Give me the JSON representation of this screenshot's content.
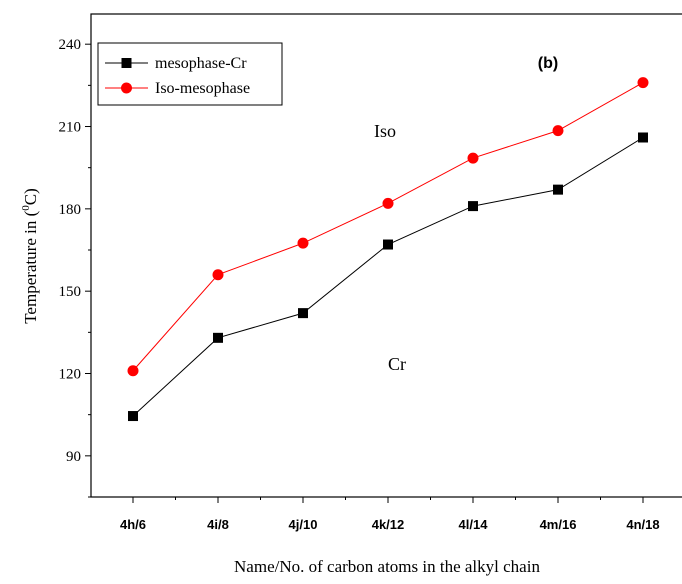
{
  "chart_data": {
    "type": "line",
    "panel_label": "(b)",
    "xlabel": "Name/No. of carbon atoms in the alkyl chain",
    "ylabel": "Temperature in (0C)",
    "ylabel_parts": {
      "before": "Temperature in (",
      "superscript": "0",
      "after": "C)"
    },
    "categories": [
      "4h/6",
      "4i/8",
      "4j/10",
      "4k/12",
      "4l/14",
      "4m/16",
      "4n/18"
    ],
    "ylim": [
      75,
      251
    ],
    "yticks": [
      90,
      120,
      150,
      180,
      210,
      240
    ],
    "grid": false,
    "legend_position": "top-left",
    "series": [
      {
        "name": "mesophase-Cr",
        "color": "#000000",
        "marker": "square",
        "values": [
          104.5,
          133,
          142,
          167,
          181,
          187,
          206
        ]
      },
      {
        "name": "Iso-mesophase",
        "color": "#ff0000",
        "marker": "circle",
        "values": [
          121,
          156,
          167.5,
          182,
          198.5,
          208.5,
          226
        ]
      }
    ],
    "annotations": [
      {
        "text": "Iso",
        "x": "4j/10",
        "y": 208
      },
      {
        "text": "Cr",
        "x": "4k/12",
        "y": 124
      }
    ]
  }
}
